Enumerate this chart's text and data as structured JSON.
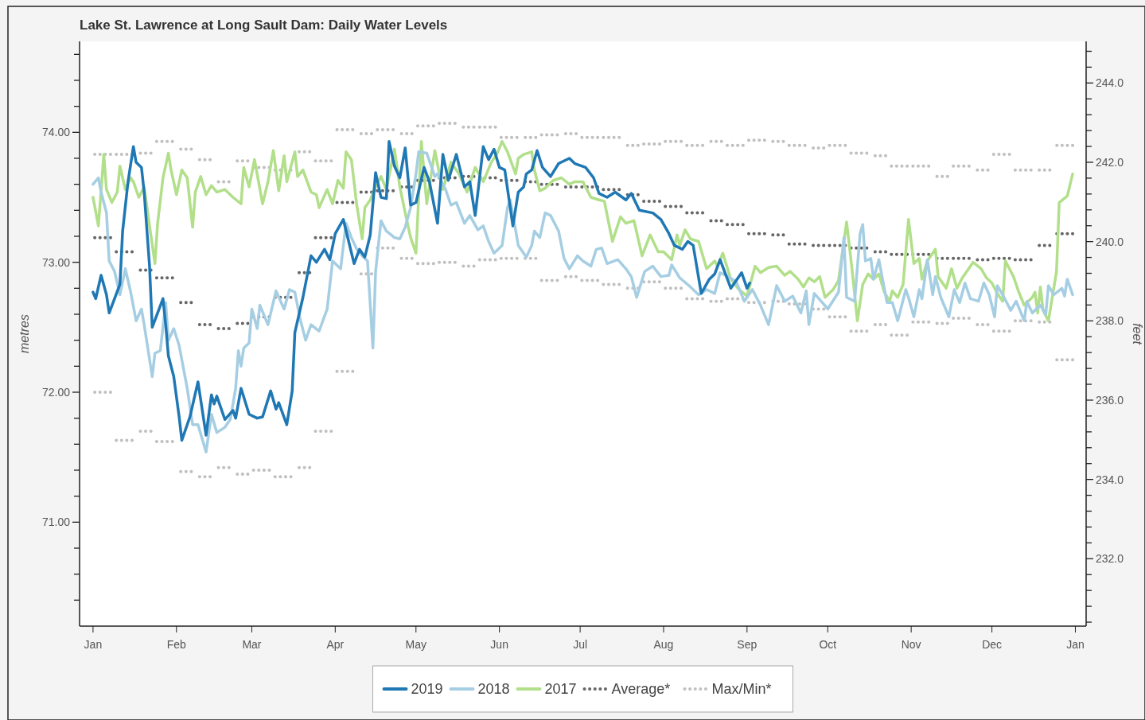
{
  "chart_data": {
    "type": "line",
    "title": "Lake St. Lawrence at Long Sault Dam: Daily Water Levels",
    "ylabel": "metres",
    "y2label": "feet",
    "legend": "bottom",
    "marker": "none",
    "xlim": [
      "2018-12-27",
      "2020-01-05"
    ],
    "xticks": [
      {
        "value": "2019-01-01",
        "label": "Jan"
      },
      {
        "value": "2019-02-01",
        "label": "Feb"
      },
      {
        "value": "2019-03-01",
        "label": "Mar"
      },
      {
        "value": "2019-04-01",
        "label": "Apr"
      },
      {
        "value": "2019-05-01",
        "label": "May"
      },
      {
        "value": "2019-06-01",
        "label": "Jun"
      },
      {
        "value": "2019-07-01",
        "label": "Jul"
      },
      {
        "value": "2019-08-01",
        "label": "Aug"
      },
      {
        "value": "2019-09-01",
        "label": "Sep"
      },
      {
        "value": "2019-10-01",
        "label": "Oct"
      },
      {
        "value": "2019-11-01",
        "label": "Nov"
      },
      {
        "value": "2019-12-01",
        "label": "Dec"
      },
      {
        "value": "2020-01-01",
        "label": "Jan"
      }
    ],
    "ylim": [
      70.2,
      74.7
    ],
    "yticks": [
      {
        "value": 70.4,
        "label": null
      },
      {
        "value": 70.6,
        "label": null
      },
      {
        "value": 70.8,
        "label": null
      },
      {
        "value": 71,
        "label": "71.00"
      },
      {
        "value": 71.2,
        "label": null
      },
      {
        "value": 71.4,
        "label": null
      },
      {
        "value": 71.6,
        "label": null
      },
      {
        "value": 71.8,
        "label": null
      },
      {
        "value": 72,
        "label": "72.00"
      },
      {
        "value": 72.2,
        "label": null
      },
      {
        "value": 72.4,
        "label": null
      },
      {
        "value": 72.6,
        "label": null
      },
      {
        "value": 72.8,
        "label": null
      },
      {
        "value": 73,
        "label": "73.00"
      },
      {
        "value": 73.2,
        "label": null
      },
      {
        "value": 73.4,
        "label": null
      },
      {
        "value": 73.6,
        "label": null
      },
      {
        "value": 73.8,
        "label": null
      },
      {
        "value": 74,
        "label": "74.00"
      },
      {
        "value": 74.2,
        "label": null
      },
      {
        "value": 74.4,
        "label": null
      },
      {
        "value": 74.6,
        "label": null
      }
    ],
    "y2lim": [
      230.3,
      245.05
    ],
    "y2ticks": [
      {
        "value": 230.4,
        "label": null
      },
      {
        "value": 230.8,
        "label": null
      },
      {
        "value": 231.2,
        "label": null
      },
      {
        "value": 231.6,
        "label": null
      },
      {
        "value": 232,
        "label": "232.0"
      },
      {
        "value": 232.4,
        "label": null
      },
      {
        "value": 232.8,
        "label": null
      },
      {
        "value": 233.2,
        "label": null
      },
      {
        "value": 233.6,
        "label": null
      },
      {
        "value": 234,
        "label": "234.0"
      },
      {
        "value": 234.4,
        "label": null
      },
      {
        "value": 234.8,
        "label": null
      },
      {
        "value": 235.2,
        "label": null
      },
      {
        "value": 235.6,
        "label": null
      },
      {
        "value": 236,
        "label": "236.0"
      },
      {
        "value": 236.4,
        "label": null
      },
      {
        "value": 236.8,
        "label": null
      },
      {
        "value": 237.2,
        "label": null
      },
      {
        "value": 237.6,
        "label": null
      },
      {
        "value": 238,
        "label": "238.0"
      },
      {
        "value": 238.4,
        "label": null
      },
      {
        "value": 238.8,
        "label": null
      },
      {
        "value": 239.2,
        "label": null
      },
      {
        "value": 239.6,
        "label": null
      },
      {
        "value": 240,
        "label": "240.0"
      },
      {
        "value": 240.4,
        "label": null
      },
      {
        "value": 240.8,
        "label": null
      },
      {
        "value": 241.2,
        "label": null
      },
      {
        "value": 241.6,
        "label": null
      },
      {
        "value": 242,
        "label": "242.0"
      },
      {
        "value": 242.4,
        "label": null
      },
      {
        "value": 242.8,
        "label": null
      },
      {
        "value": 243.2,
        "label": null
      },
      {
        "value": 243.6,
        "label": null
      },
      {
        "value": 244,
        "label": "244.0"
      },
      {
        "value": 244.4,
        "label": null
      },
      {
        "value": 244.8,
        "label": null
      }
    ],
    "x": [
      "2019-01-01",
      "2019-01-09",
      "2019-01-17",
      "2019-01-24",
      "2019-02-01",
      "2019-02-08",
      "2019-02-15",
      "2019-02-22",
      "2019-03-01",
      "2019-03-09",
      "2019-03-17",
      "2019-03-24",
      "2019-04-01",
      "2019-04-09",
      "2019-04-16",
      "2019-04-24",
      "2019-05-01",
      "2019-05-09",
      "2019-05-17",
      "2019-05-24",
      "2019-06-01",
      "2019-06-09",
      "2019-06-16",
      "2019-06-24",
      "2019-07-01",
      "2019-07-09",
      "2019-07-17",
      "2019-07-24",
      "2019-08-01",
      "2019-08-09",
      "2019-08-17",
      "2019-08-24",
      "2019-09-01",
      "2019-09-09",
      "2019-09-16",
      "2019-09-24",
      "2019-10-01",
      "2019-10-09",
      "2019-10-17",
      "2019-10-24",
      "2019-11-01",
      "2019-11-09",
      "2019-11-16",
      "2019-11-24",
      "2019-12-01",
      "2019-12-09",
      "2019-12-17",
      "2019-12-24",
      "2019-12-31"
    ],
    "series": [
      {
        "name": "2019",
        "color": "#1f78b4",
        "x": [
          "2019-01-01",
          "2019-01-02",
          "2019-01-04",
          "2019-01-06",
          "2019-01-07",
          "2019-01-11",
          "2019-01-12",
          "2019-01-14",
          "2019-01-16",
          "2019-01-17",
          "2019-01-19",
          "2019-01-20",
          "2019-01-22",
          "2019-01-23",
          "2019-01-25",
          "2019-01-27",
          "2019-01-28",
          "2019-01-29",
          "2019-01-31",
          "2019-02-02",
          "2019-02-03",
          "2019-02-06",
          "2019-02-09",
          "2019-02-12",
          "2019-02-14",
          "2019-02-15",
          "2019-02-16",
          "2019-02-19",
          "2019-02-22",
          "2019-02-23",
          "2019-02-25",
          "2019-02-28",
          "2019-03-03",
          "2019-03-05",
          "2019-03-08",
          "2019-03-10",
          "2019-03-11",
          "2019-03-14",
          "2019-03-16",
          "2019-03-17",
          "2019-03-20",
          "2019-03-23",
          "2019-03-25",
          "2019-03-28",
          "2019-03-30",
          "2019-04-01",
          "2019-04-04",
          "2019-04-06",
          "2019-04-08",
          "2019-04-10",
          "2019-04-12",
          "2019-04-14",
          "2019-04-16",
          "2019-04-18",
          "2019-04-20",
          "2019-04-21",
          "2019-04-23",
          "2019-04-25",
          "2019-04-27",
          "2019-04-29",
          "2019-05-01",
          "2019-05-04",
          "2019-05-06",
          "2019-05-09",
          "2019-05-11",
          "2019-05-13",
          "2019-05-16",
          "2019-05-19",
          "2019-05-21",
          "2019-05-23",
          "2019-05-26",
          "2019-05-28",
          "2019-05-30",
          "2019-06-01",
          "2019-06-03",
          "2019-06-06",
          "2019-06-08",
          "2019-06-10",
          "2019-06-11",
          "2019-06-13",
          "2019-06-15",
          "2019-06-17",
          "2019-06-20",
          "2019-06-23",
          "2019-06-27",
          "2019-06-29",
          "2019-07-03",
          "2019-07-06",
          "2019-07-08",
          "2019-07-11",
          "2019-07-14",
          "2019-07-18",
          "2019-07-20",
          "2019-07-23",
          "2019-07-28",
          "2019-07-31",
          "2019-08-03",
          "2019-08-05",
          "2019-08-08",
          "2019-08-10",
          "2019-08-12",
          "2019-08-15",
          "2019-08-18",
          "2019-08-20",
          "2019-08-22",
          "2019-08-26",
          "2019-08-30",
          "2019-09-01",
          "2019-09-02"
        ],
        "values": [
          72.77,
          72.72,
          72.9,
          72.75,
          72.61,
          72.83,
          73.24,
          73.62,
          73.89,
          73.77,
          73.73,
          73.54,
          72.97,
          72.5,
          72.61,
          72.72,
          72.52,
          72.28,
          72.12,
          71.81,
          71.63,
          71.81,
          72.08,
          71.67,
          71.98,
          71.91,
          71.97,
          71.79,
          71.86,
          71.8,
          72.03,
          71.83,
          71.8,
          71.81,
          72.01,
          71.87,
          71.92,
          71.75,
          72.01,
          72.46,
          72.73,
          73.05,
          73.0,
          73.1,
          73.02,
          73.22,
          73.33,
          73.16,
          72.99,
          73.1,
          73.04,
          73.21,
          73.69,
          73.5,
          73.49,
          73.93,
          73.74,
          73.65,
          73.88,
          73.44,
          73.46,
          73.73,
          73.62,
          73.3,
          73.83,
          73.63,
          73.83,
          73.58,
          73.62,
          73.36,
          73.89,
          73.79,
          73.87,
          73.73,
          73.71,
          73.28,
          73.54,
          73.58,
          73.68,
          73.71,
          73.86,
          73.73,
          73.66,
          73.76,
          73.8,
          73.76,
          73.73,
          73.65,
          73.53,
          73.5,
          73.54,
          73.48,
          73.53,
          73.4,
          73.38,
          73.33,
          73.22,
          73.13,
          73.1,
          73.16,
          73.13,
          72.76,
          72.87,
          72.91,
          73.02,
          72.8,
          72.92,
          72.8,
          72.84
        ]
      },
      {
        "name": "2018",
        "color": "#a6cee3",
        "x": [
          "2019-01-01",
          "2019-01-03",
          "2019-01-04",
          "2019-01-06",
          "2019-01-07",
          "2019-01-09",
          "2019-01-11",
          "2019-01-13",
          "2019-01-15",
          "2019-01-17",
          "2019-01-19",
          "2019-01-20",
          "2019-01-23",
          "2019-01-24",
          "2019-01-26",
          "2019-01-28",
          "2019-01-29",
          "2019-01-31",
          "2019-02-02",
          "2019-02-05",
          "2019-02-07",
          "2019-02-09",
          "2019-02-12",
          "2019-02-14",
          "2019-02-16",
          "2019-02-19",
          "2019-02-21",
          "2019-02-23",
          "2019-02-24",
          "2019-02-25",
          "2019-02-26",
          "2019-02-28",
          "2019-03-01",
          "2019-03-03",
          "2019-03-04",
          "2019-03-07",
          "2019-03-10",
          "2019-03-13",
          "2019-03-15",
          "2019-03-17",
          "2019-03-19",
          "2019-03-21",
          "2019-03-23",
          "2019-03-26",
          "2019-03-29",
          "2019-03-31",
          "2019-04-03",
          "2019-04-05",
          "2019-04-07",
          "2019-04-09",
          "2019-04-11",
          "2019-04-13",
          "2019-04-15",
          "2019-04-16",
          "2019-04-18",
          "2019-04-20",
          "2019-04-23",
          "2019-04-25",
          "2019-04-27",
          "2019-04-29",
          "2019-05-01",
          "2019-05-02",
          "2019-05-05",
          "2019-05-08",
          "2019-05-09",
          "2019-05-12",
          "2019-05-14",
          "2019-05-16",
          "2019-05-19",
          "2019-05-21",
          "2019-05-24",
          "2019-05-26",
          "2019-05-28",
          "2019-05-30",
          "2019-06-02",
          "2019-06-04",
          "2019-06-05",
          "2019-06-07",
          "2019-06-08",
          "2019-06-11",
          "2019-06-13",
          "2019-06-14",
          "2019-06-16",
          "2019-06-18",
          "2019-06-20",
          "2019-06-23",
          "2019-06-25",
          "2019-06-27",
          "2019-06-30",
          "2019-07-02",
          "2019-07-05",
          "2019-07-07",
          "2019-07-09",
          "2019-07-11",
          "2019-07-15",
          "2019-07-18",
          "2019-07-20",
          "2019-07-22",
          "2019-07-25",
          "2019-07-28",
          "2019-07-31",
          "2019-08-03",
          "2019-08-04",
          "2019-08-07",
          "2019-08-11",
          "2019-08-14",
          "2019-08-17",
          "2019-08-20",
          "2019-08-22",
          "2019-08-25",
          "2019-08-28",
          "2019-08-31",
          "2019-09-03",
          "2019-09-06",
          "2019-09-09",
          "2019-09-12",
          "2019-09-15",
          "2019-09-18",
          "2019-09-21",
          "2019-09-23",
          "2019-09-24",
          "2019-09-26",
          "2019-09-29",
          "2019-10-01",
          "2019-10-05",
          "2019-10-07",
          "2019-10-08",
          "2019-10-11",
          "2019-10-13",
          "2019-10-14",
          "2019-10-15",
          "2019-10-17",
          "2019-10-18",
          "2019-10-20",
          "2019-10-23",
          "2019-10-25",
          "2019-10-27",
          "2019-10-30",
          "2019-10-31",
          "2019-11-02",
          "2019-11-04",
          "2019-11-05",
          "2019-11-07",
          "2019-11-09",
          "2019-11-10",
          "2019-11-12",
          "2019-11-15",
          "2019-11-17",
          "2019-11-19",
          "2019-11-21",
          "2019-11-23",
          "2019-11-26",
          "2019-11-28",
          "2019-11-30",
          "2019-12-02",
          "2019-12-03",
          "2019-12-05",
          "2019-12-08",
          "2019-12-10",
          "2019-12-13",
          "2019-12-14",
          "2019-12-16",
          "2019-12-19",
          "2019-12-21",
          "2019-12-22",
          "2019-12-24",
          "2019-12-27",
          "2019-12-28",
          "2019-12-29",
          "2019-12-31"
        ],
        "values": [
          73.6,
          73.65,
          73.54,
          73.38,
          73.01,
          72.93,
          72.75,
          72.95,
          72.77,
          72.55,
          72.64,
          72.52,
          72.12,
          72.3,
          72.32,
          72.69,
          72.4,
          72.49,
          72.36,
          72.03,
          71.75,
          71.75,
          71.54,
          71.83,
          71.69,
          71.73,
          71.79,
          72.03,
          72.32,
          72.2,
          72.34,
          72.38,
          72.64,
          72.49,
          72.67,
          72.52,
          72.78,
          72.64,
          72.79,
          72.77,
          72.56,
          72.4,
          72.52,
          72.47,
          72.64,
          73.01,
          72.95,
          73.3,
          73.19,
          73.1,
          73.05,
          73.01,
          72.34,
          72.93,
          73.32,
          73.24,
          73.19,
          73.18,
          73.27,
          73.42,
          73.68,
          73.85,
          73.84,
          73.66,
          73.68,
          73.56,
          73.44,
          73.46,
          73.3,
          73.36,
          73.25,
          73.28,
          73.16,
          73.07,
          73.13,
          73.42,
          73.48,
          73.25,
          73.13,
          73.04,
          73.13,
          73.24,
          73.19,
          73.38,
          73.36,
          73.24,
          73.03,
          72.95,
          73.05,
          73.01,
          72.97,
          73.1,
          73.11,
          72.99,
          73.02,
          72.95,
          72.89,
          72.73,
          72.93,
          72.97,
          72.89,
          72.9,
          72.98,
          72.88,
          72.81,
          72.75,
          72.79,
          72.76,
          72.92,
          72.89,
          72.85,
          72.7,
          72.79,
          72.67,
          72.52,
          72.82,
          72.7,
          72.74,
          72.61,
          72.78,
          72.52,
          72.76,
          72.69,
          72.64,
          72.77,
          73.19,
          72.73,
          72.7,
          73.22,
          73.29,
          73.01,
          73.03,
          72.87,
          73.02,
          72.69,
          72.69,
          72.55,
          72.79,
          72.73,
          72.58,
          72.79,
          72.72,
          73.02,
          72.75,
          72.89,
          72.73,
          72.58,
          72.79,
          72.69,
          72.84,
          72.72,
          72.7,
          72.84,
          72.75,
          72.58,
          72.82,
          72.75,
          72.63,
          72.7,
          72.55,
          72.7,
          72.61,
          72.67,
          72.6,
          72.82,
          72.75,
          72.8,
          72.74,
          72.87,
          72.75
        ]
      },
      {
        "name": "2017",
        "color": "#b2df8a",
        "x": [
          "2019-01-01",
          "2019-01-03",
          "2019-01-05",
          "2019-01-06",
          "2019-01-08",
          "2019-01-10",
          "2019-01-11",
          "2019-01-13",
          "2019-01-15",
          "2019-01-16",
          "2019-01-18",
          "2019-01-20",
          "2019-01-22",
          "2019-01-24",
          "2019-01-25",
          "2019-01-27",
          "2019-01-29",
          "2019-01-30",
          "2019-02-01",
          "2019-02-03",
          "2019-02-05",
          "2019-02-07",
          "2019-02-08",
          "2019-02-10",
          "2019-02-12",
          "2019-02-14",
          "2019-02-16",
          "2019-02-19",
          "2019-02-22",
          "2019-02-25",
          "2019-02-26",
          "2019-02-28",
          "2019-03-02",
          "2019-03-05",
          "2019-03-07",
          "2019-03-09",
          "2019-03-11",
          "2019-03-13",
          "2019-03-14",
          "2019-03-17",
          "2019-03-18",
          "2019-03-20",
          "2019-03-23",
          "2019-03-25",
          "2019-03-26",
          "2019-03-29",
          "2019-03-31",
          "2019-04-02",
          "2019-04-04",
          "2019-04-05",
          "2019-04-07",
          "2019-04-09",
          "2019-04-11",
          "2019-04-12",
          "2019-04-14",
          "2019-04-16",
          "2019-04-18",
          "2019-04-20",
          "2019-04-23",
          "2019-04-25",
          "2019-04-27",
          "2019-04-29",
          "2019-05-01",
          "2019-05-03",
          "2019-05-05",
          "2019-05-08",
          "2019-05-10",
          "2019-05-11",
          "2019-05-14",
          "2019-05-17",
          "2019-05-20",
          "2019-05-23",
          "2019-05-26",
          "2019-05-29",
          "2019-05-31",
          "2019-06-02",
          "2019-06-04",
          "2019-06-07",
          "2019-06-08",
          "2019-06-10",
          "2019-06-13",
          "2019-06-14",
          "2019-06-16",
          "2019-06-18",
          "2019-06-21",
          "2019-06-24",
          "2019-06-27",
          "2019-06-29",
          "2019-07-02",
          "2019-07-05",
          "2019-07-08",
          "2019-07-10",
          "2019-07-13",
          "2019-07-16",
          "2019-07-18",
          "2019-07-21",
          "2019-07-24",
          "2019-07-27",
          "2019-07-30",
          "2019-08-01",
          "2019-08-04",
          "2019-08-06",
          "2019-08-07",
          "2019-08-09",
          "2019-08-11",
          "2019-08-14",
          "2019-08-17",
          "2019-08-20",
          "2019-08-21",
          "2019-08-23",
          "2019-08-26",
          "2019-08-29",
          "2019-09-01",
          "2019-09-04",
          "2019-09-06",
          "2019-09-09",
          "2019-09-12",
          "2019-09-15",
          "2019-09-17",
          "2019-09-20",
          "2019-09-22",
          "2019-09-24",
          "2019-09-26",
          "2019-09-28",
          "2019-09-30",
          "2019-10-03",
          "2019-10-05",
          "2019-10-08",
          "2019-10-10",
          "2019-10-12",
          "2019-10-14",
          "2019-10-16",
          "2019-10-18",
          "2019-10-20",
          "2019-10-22",
          "2019-10-24",
          "2019-10-25",
          "2019-10-27",
          "2019-10-29",
          "2019-10-31",
          "2019-11-02",
          "2019-11-04",
          "2019-11-05",
          "2019-11-07",
          "2019-11-10",
          "2019-11-11",
          "2019-11-14",
          "2019-11-16",
          "2019-11-18",
          "2019-11-20",
          "2019-11-22",
          "2019-11-24",
          "2019-11-27",
          "2019-11-29",
          "2019-12-01",
          "2019-12-03",
          "2019-12-05",
          "2019-12-06",
          "2019-12-09",
          "2019-12-11",
          "2019-12-13",
          "2019-12-16",
          "2019-12-17",
          "2019-12-18",
          "2019-12-19",
          "2019-12-20",
          "2019-12-22",
          "2019-12-25",
          "2019-12-26",
          "2019-12-29",
          "2019-12-31"
        ],
        "values": [
          73.5,
          73.28,
          73.83,
          73.56,
          73.46,
          73.54,
          73.74,
          73.56,
          73.65,
          73.62,
          73.5,
          73.58,
          73.28,
          72.99,
          73.3,
          73.65,
          73.84,
          73.71,
          73.52,
          73.71,
          73.65,
          73.27,
          73.54,
          73.66,
          73.52,
          73.59,
          73.54,
          73.56,
          73.5,
          73.45,
          73.73,
          73.58,
          73.79,
          73.45,
          73.62,
          73.86,
          73.55,
          73.82,
          73.62,
          73.85,
          73.66,
          73.71,
          73.54,
          73.52,
          73.42,
          73.56,
          73.45,
          73.63,
          73.57,
          73.85,
          73.79,
          73.44,
          73.18,
          73.42,
          73.48,
          73.58,
          73.66,
          73.56,
          73.87,
          73.58,
          73.38,
          73.19,
          73.07,
          73.93,
          73.45,
          73.86,
          73.65,
          73.56,
          73.77,
          73.68,
          73.54,
          73.73,
          73.62,
          73.77,
          73.83,
          73.93,
          73.85,
          73.68,
          73.8,
          73.83,
          73.85,
          73.71,
          73.55,
          73.57,
          73.63,
          73.65,
          73.6,
          73.62,
          73.62,
          73.5,
          73.48,
          73.47,
          73.16,
          73.35,
          73.3,
          73.32,
          73.05,
          73.21,
          73.08,
          73.08,
          73.02,
          73.21,
          73.13,
          73.25,
          73.18,
          73.16,
          72.95,
          73.01,
          72.97,
          73.07,
          72.87,
          72.79,
          72.74,
          72.97,
          72.92,
          72.96,
          72.97,
          72.9,
          72.93,
          72.87,
          72.81,
          72.88,
          72.85,
          72.89,
          72.73,
          72.79,
          72.86,
          73.31,
          72.95,
          72.55,
          72.83,
          72.91,
          72.87,
          72.91,
          72.77,
          72.7,
          72.78,
          72.73,
          72.83,
          73.33,
          72.99,
          73.03,
          72.87,
          73.01,
          73.1,
          72.89,
          72.8,
          72.95,
          72.8,
          72.88,
          72.94,
          73.0,
          72.95,
          72.88,
          72.84,
          72.76,
          72.7,
          73.01,
          72.89,
          72.77,
          72.67,
          72.73,
          72.77,
          72.61,
          72.81,
          72.63,
          72.55,
          72.93,
          73.46,
          73.51,
          73.68
        ]
      },
      {
        "name": "Average*",
        "type": "step",
        "line_style": "dotted",
        "color": "#666666",
        "values": [
          73.19,
          73.08,
          72.94,
          72.88,
          72.69,
          72.52,
          72.49,
          72.53,
          72.58,
          72.73,
          72.92,
          73.19,
          73.46,
          73.54,
          73.55,
          73.58,
          73.63,
          73.65,
          73.66,
          73.65,
          73.63,
          73.62,
          73.6,
          73.58,
          73.58,
          73.56,
          73.52,
          73.47,
          73.43,
          73.38,
          73.32,
          73.29,
          73.22,
          73.21,
          73.14,
          73.13,
          73.13,
          73.11,
          73.08,
          73.06,
          73.06,
          73.03,
          73.03,
          73.02,
          73.03,
          73.02,
          73.13,
          73.22,
          73.22
        ]
      },
      {
        "name": "Max/Min*",
        "type": "step",
        "line_style": "dotted",
        "color": "#c0c0c0",
        "values": [
          73.83,
          73.83,
          73.84,
          73.93,
          73.87,
          73.79,
          73.62,
          73.78,
          73.73,
          73.71,
          73.85,
          73.78,
          74.02,
          73.99,
          74.02,
          73.99,
          74.05,
          74.07,
          74.04,
          74.04,
          73.96,
          73.96,
          73.98,
          73.99,
          73.96,
          73.96,
          73.9,
          73.91,
          73.93,
          73.9,
          73.93,
          73.9,
          73.94,
          73.93,
          73.9,
          73.88,
          73.9,
          73.84,
          73.82,
          73.74,
          73.74,
          73.66,
          73.74,
          73.71,
          73.83,
          73.71,
          73.71,
          73.9,
          73.9
        ]
      },
      {
        "type": "step",
        "line_style": "dotted",
        "color": "#c0c0c0",
        "values": [
          72.0,
          71.63,
          71.7,
          71.62,
          71.39,
          71.35,
          71.42,
          71.37,
          71.4,
          71.35,
          71.42,
          71.7,
          72.16,
          72.91,
          73.11,
          73.03,
          72.99,
          73.0,
          72.97,
          73.02,
          73.03,
          73.03,
          72.86,
          72.89,
          72.86,
          72.83,
          72.8,
          72.85,
          72.8,
          72.72,
          72.7,
          72.72,
          72.69,
          72.7,
          72.68,
          72.64,
          72.58,
          72.47,
          72.52,
          72.44,
          72.54,
          72.53,
          72.57,
          72.52,
          72.47,
          72.55,
          72.54,
          72.25,
          72.25
        ]
      }
    ]
  }
}
